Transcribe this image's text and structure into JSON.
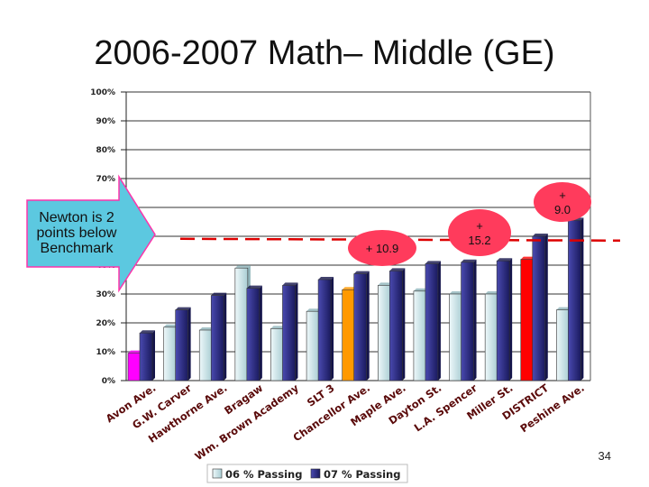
{
  "slide": {
    "title": "2006-2007 Math– Middle (GE)",
    "page_number": "34"
  },
  "callouts": {
    "newton_lines": [
      "Newton is 2",
      "points below",
      "Benchmark"
    ],
    "bubble_1": [
      "+ 10.9"
    ],
    "bubble_2": [
      "+",
      "15.2"
    ],
    "bubble_3": [
      "+",
      "9.0"
    ]
  },
  "colors": {
    "series_06": "#c9e6ea",
    "series_07": "#2e2e8c",
    "avon_06": "#ff00ff",
    "chancellor_06": "#ff9900",
    "district_06": "#ff0000",
    "benchmark_line": "#dd0000",
    "callout_fill": "#5cc8e0",
    "bubble_fill": "#ff3b5c"
  },
  "chart_data": {
    "type": "bar",
    "categories": [
      "Avon Ave.",
      "G.W. Carver",
      "Hawthorne Ave.",
      "Bragaw",
      "Wm. Brown Academy",
      "SLT 3",
      "Chancellor Ave.",
      "Maple Ave.",
      "Dayton St.",
      "L.A. Spencer",
      "Miller St.",
      "DISTRICT",
      "Peshine Ave."
    ],
    "series": [
      {
        "name": "06 % Passing",
        "values": [
          9.5,
          18.5,
          17.5,
          39,
          18,
          24,
          31.5,
          33,
          31,
          30,
          30,
          42,
          24.5
        ]
      },
      {
        "name": "07 % Passing",
        "values": [
          16.5,
          24.5,
          29.5,
          32,
          33,
          35,
          37,
          38,
          40.5,
          41,
          41.5,
          50,
          55.5
        ]
      }
    ],
    "y_ticks": [
      "0%",
      "10%",
      "20%",
      "30%",
      "40%",
      "50%",
      "60%",
      "70%",
      "80%",
      "90%",
      "100%"
    ],
    "ylim": [
      0,
      100
    ],
    "benchmark": 51,
    "legend_position": "bottom",
    "grid": true
  }
}
